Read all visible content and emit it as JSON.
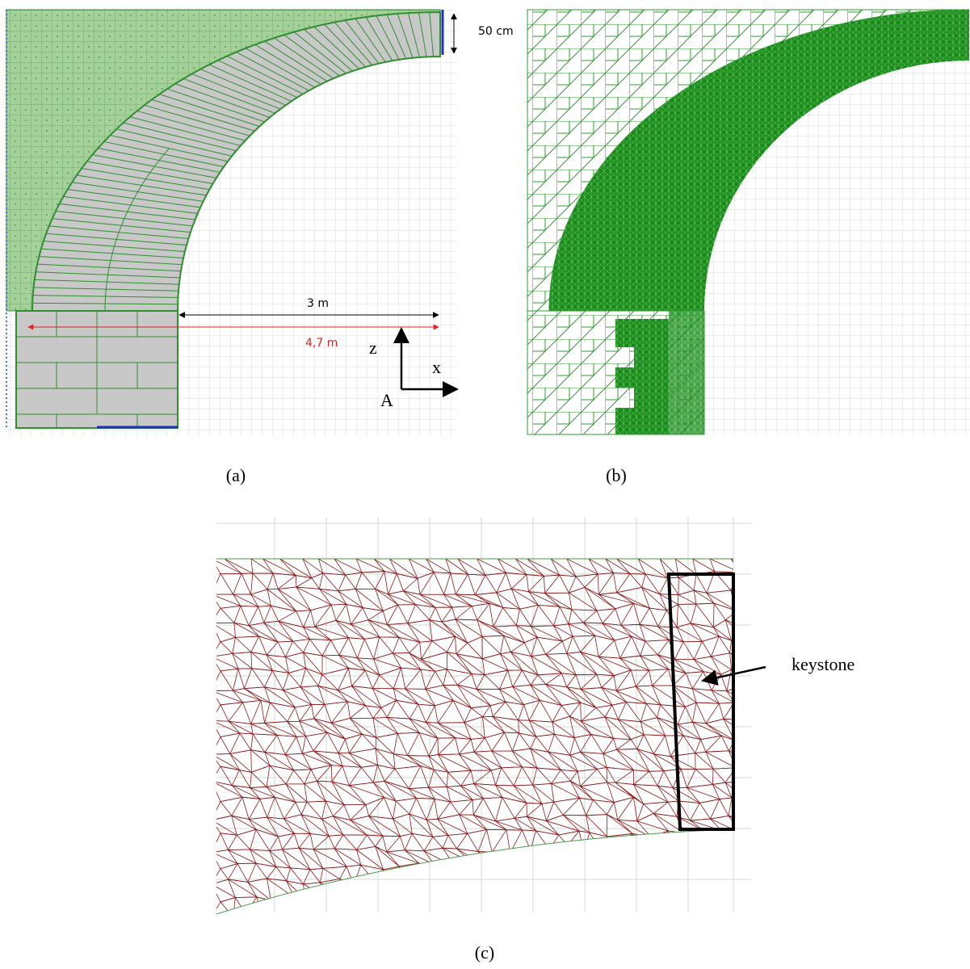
{
  "panels": [
    {
      "label": "(a)",
      "annotations": {
        "thickness": "50 cm",
        "span": "3 m",
        "width": "4,7 m",
        "axis_z": "z",
        "axis_x": "x",
        "point": "A"
      }
    },
    {
      "label": "(b)"
    },
    {
      "label": "(c)",
      "annotation": "keystone"
    }
  ]
}
